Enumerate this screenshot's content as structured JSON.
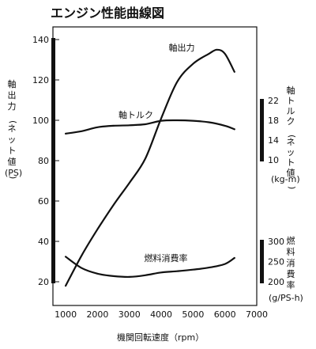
{
  "chart_data": {
    "type": "line",
    "title": "エンジン性能曲線図",
    "xlabel": "機関回転速度（rpm）",
    "x_ticks": [
      1000,
      2000,
      3000,
      4000,
      5000,
      6000,
      7000
    ],
    "xlim": [
      600,
      7000
    ],
    "y_left": {
      "label": "軸出力(ネット値)",
      "unit": "(PS)",
      "ticks": [
        20,
        40,
        60,
        80,
        100,
        120,
        140
      ],
      "range": [
        10,
        145
      ]
    },
    "y_right_torque": {
      "label": "軸トルク(ネット値)",
      "unit": "(kg-m)",
      "ticks": [
        10,
        14,
        18,
        22
      ]
    },
    "y_right_fuel": {
      "label": "燃料消費率",
      "unit": "(g/PS-h)",
      "ticks": [
        200,
        250,
        300
      ]
    },
    "series": [
      {
        "name": "軸出力",
        "axis": "power",
        "x": [
          1000,
          1500,
          2000,
          2500,
          3000,
          3500,
          4000,
          4500,
          5000,
          5500,
          5750,
          6000,
          6300
        ],
        "values": [
          18,
          33,
          46,
          58,
          69,
          81,
          101,
          119,
          128,
          133,
          135,
          133,
          124
        ]
      },
      {
        "name": "軸トルク",
        "axis": "torque",
        "x": [
          1000,
          1500,
          2000,
          2500,
          3000,
          3500,
          4000,
          4500,
          5000,
          5500,
          6000,
          6300
        ],
        "values": [
          15.3,
          15.8,
          16.6,
          16.9,
          17.0,
          17.2,
          17.9,
          18.0,
          17.9,
          17.6,
          16.9,
          16.2
        ]
      },
      {
        "name": "燃料消費率",
        "axis": "fuel",
        "x": [
          1000,
          1500,
          2000,
          2500,
          3000,
          3500,
          4000,
          4500,
          5000,
          5500,
          6000,
          6300
        ],
        "values": [
          262,
          234,
          220,
          214,
          212,
          216,
          223,
          226,
          230,
          235,
          244,
          259
        ]
      }
    ]
  }
}
